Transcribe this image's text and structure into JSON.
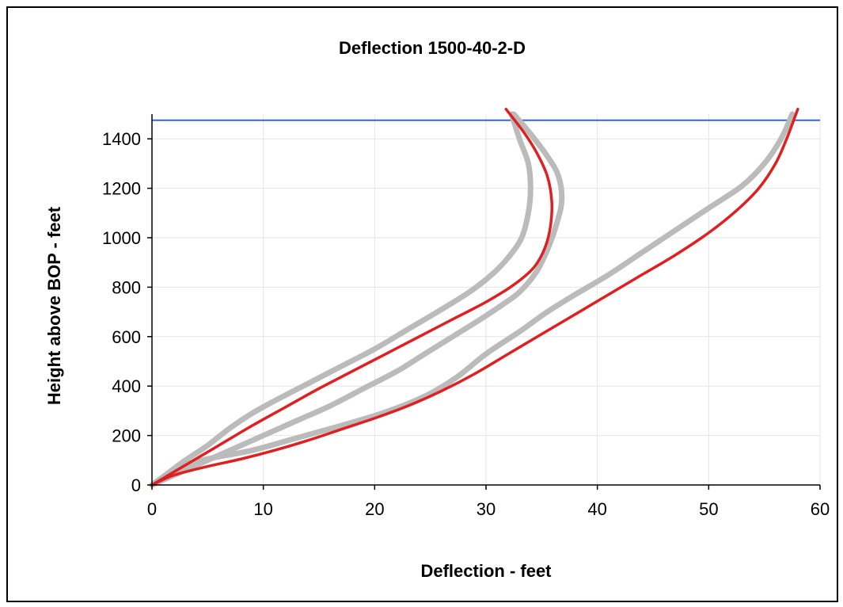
{
  "chart_data": {
    "type": "line",
    "title": "Deflection 1500-40-2-D",
    "xlabel": "Deflection - feet",
    "ylabel": "Height above BOP - feet",
    "xlim": [
      0,
      60
    ],
    "ylim": [
      0,
      1500
    ],
    "xticks": [
      0,
      10,
      20,
      30,
      40,
      50,
      60
    ],
    "yticks": [
      0,
      200,
      400,
      600,
      800,
      1000,
      1200,
      1400
    ],
    "grid": true,
    "legend": "none",
    "reference_lines": [
      {
        "orientation": "horizontal",
        "y": 1475,
        "color": "#3366dd"
      }
    ],
    "series": [
      {
        "color": "#bbbbbb",
        "points": [
          [
            0,
            0
          ],
          [
            1.5,
            50
          ],
          [
            3,
            100
          ],
          [
            5,
            160
          ],
          [
            7,
            230
          ],
          [
            9,
            290
          ],
          [
            11,
            340
          ],
          [
            14,
            410
          ],
          [
            17,
            480
          ],
          [
            20,
            550
          ],
          [
            23,
            630
          ],
          [
            26,
            710
          ],
          [
            28.5,
            780
          ],
          [
            30.5,
            850
          ],
          [
            32,
            920
          ],
          [
            33.2,
            1000
          ],
          [
            33.8,
            1100
          ],
          [
            34,
            1200
          ],
          [
            33.8,
            1300
          ],
          [
            33,
            1400
          ],
          [
            32.3,
            1500
          ]
        ]
      },
      {
        "color": "#bbbbbb",
        "points": [
          [
            0,
            0
          ],
          [
            1.5,
            30
          ],
          [
            3,
            60
          ],
          [
            5,
            100
          ],
          [
            7,
            140
          ],
          [
            10,
            200
          ],
          [
            13,
            260
          ],
          [
            16,
            320
          ],
          [
            19,
            390
          ],
          [
            22,
            460
          ],
          [
            24.5,
            530
          ],
          [
            27,
            600
          ],
          [
            29.5,
            670
          ],
          [
            31.5,
            730
          ],
          [
            33,
            780
          ],
          [
            34.5,
            860
          ],
          [
            35.5,
            950
          ],
          [
            36.3,
            1050
          ],
          [
            36.8,
            1150
          ],
          [
            36.5,
            1250
          ],
          [
            35.5,
            1330
          ],
          [
            34,
            1420
          ],
          [
            32.5,
            1500
          ]
        ]
      },
      {
        "color": "#bbbbbb",
        "points": [
          [
            0,
            0
          ],
          [
            1.5,
            40
          ],
          [
            3,
            80
          ],
          [
            5.5,
            110
          ],
          [
            9,
            140
          ],
          [
            13,
            190
          ],
          [
            17,
            240
          ],
          [
            20,
            280
          ],
          [
            22.5,
            320
          ],
          [
            25,
            370
          ],
          [
            27.5,
            440
          ],
          [
            30,
            530
          ],
          [
            33,
            620
          ],
          [
            35.5,
            700
          ],
          [
            38,
            770
          ],
          [
            41,
            850
          ],
          [
            44,
            940
          ],
          [
            47,
            1030
          ],
          [
            50,
            1120
          ],
          [
            53,
            1210
          ],
          [
            55,
            1300
          ],
          [
            56.5,
            1400
          ],
          [
            57.5,
            1500
          ]
        ]
      },
      {
        "color": "#e02020",
        "points": [
          [
            0,
            0
          ],
          [
            3,
            80
          ],
          [
            6,
            160
          ],
          [
            9,
            240
          ],
          [
            12,
            315
          ],
          [
            15,
            390
          ],
          [
            18,
            460
          ],
          [
            21,
            530
          ],
          [
            24,
            600
          ],
          [
            27,
            670
          ],
          [
            30,
            740
          ],
          [
            32.5,
            810
          ],
          [
            34.3,
            880
          ],
          [
            35.3,
            960
          ],
          [
            35.8,
            1050
          ],
          [
            35.9,
            1150
          ],
          [
            35.5,
            1250
          ],
          [
            34.6,
            1340
          ],
          [
            33.5,
            1420
          ],
          [
            31.8,
            1520
          ]
        ]
      },
      {
        "color": "#e02020",
        "points": [
          [
            0,
            0
          ],
          [
            2,
            40
          ],
          [
            5,
            75
          ],
          [
            8,
            105
          ],
          [
            11,
            140
          ],
          [
            14,
            180
          ],
          [
            17,
            225
          ],
          [
            20,
            270
          ],
          [
            23,
            320
          ],
          [
            26,
            380
          ],
          [
            29,
            450
          ],
          [
            32,
            530
          ],
          [
            35,
            610
          ],
          [
            38,
            690
          ],
          [
            41,
            770
          ],
          [
            44,
            850
          ],
          [
            47,
            930
          ],
          [
            50,
            1020
          ],
          [
            52.5,
            1110
          ],
          [
            54.5,
            1200
          ],
          [
            56,
            1300
          ],
          [
            57,
            1400
          ],
          [
            58,
            1520
          ]
        ]
      }
    ]
  }
}
